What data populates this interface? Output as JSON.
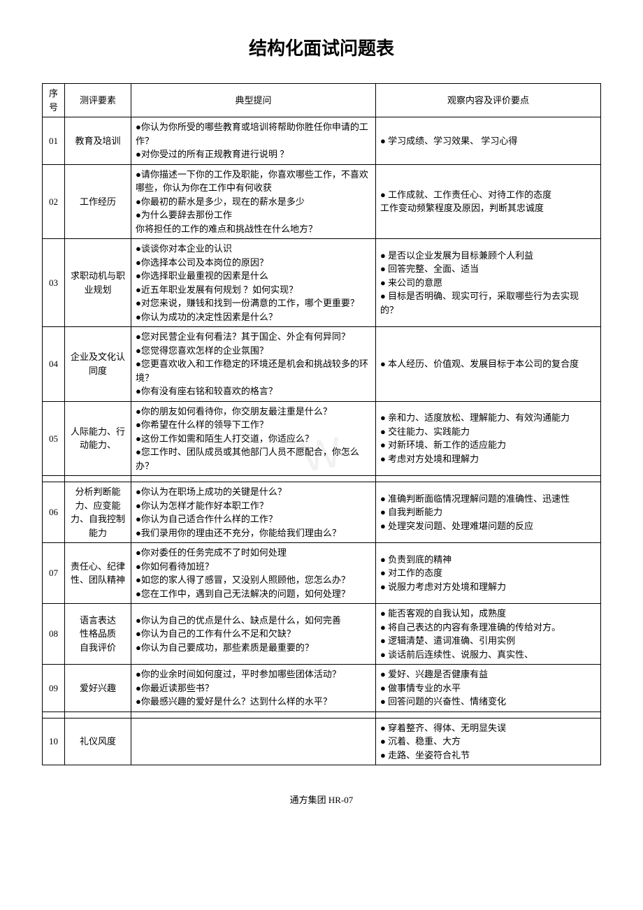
{
  "title": "结构化面试问题表",
  "headers": {
    "seq": "序号",
    "element": "测评要素",
    "question": "典型提问",
    "eval": "观察内容及评价要点"
  },
  "rows": [
    {
      "seq": "01",
      "element": "教育及培训",
      "questions": [
        {
          "bullet": true,
          "text": "你认为你所受的哪些教育或培训将帮助你胜任你申请的工作？"
        },
        {
          "bullet": true,
          "text": "对你受过的所有正规教育进行说明 ？"
        }
      ],
      "evals": [
        {
          "bullet": true,
          "text": " 学习成绩、学习效果、 学习心得"
        }
      ]
    },
    {
      "seq": "02",
      "element": "工作经历",
      "questions": [
        {
          "bullet": true,
          "text": "请你描述一下你的工作及职能，你喜欢哪些工作，不喜欢哪些，你认为你在工作中有何收获"
        },
        {
          "bullet": true,
          "text": "你最初的薪水是多少，现在的薪水是多少"
        },
        {
          "bullet": true,
          "text": "为什么要辞去那份工作"
        },
        {
          "bullet": false,
          "text": "你将担任的工作的难点和挑战性在什么地方？"
        }
      ],
      "evals": [
        {
          "bullet": true,
          "text": " 工作成就、工作责任心、对待工作的态度"
        },
        {
          "bullet": false,
          "text": "工作变动频繁程度及原因，判断其忠诚度"
        }
      ]
    },
    {
      "seq": "03",
      "element": "求职动机与职业规划",
      "questions": [
        {
          "bullet": true,
          "text": "谈谈你对本企业的认识"
        },
        {
          "bullet": true,
          "text": "你选择本公司及本岗位的原因？"
        },
        {
          "bullet": true,
          "text": "你选择职业最重视的因素是什么"
        },
        {
          "bullet": true,
          "text": "近五年职业发展有何规划 ？如何实现？"
        },
        {
          "bullet": true,
          "text": "对您来说，赚钱和找到一份满意的工作，哪个更重要？"
        },
        {
          "bullet": true,
          "text": "你认为成功的决定性因素是什么？"
        }
      ],
      "evals": [
        {
          "bullet": true,
          "text": " 是否以企业发展为目标兼顾个人利益"
        },
        {
          "bullet": true,
          "text": " 回答完整、全面、适当"
        },
        {
          "bullet": true,
          "text": " 来公司的意愿"
        },
        {
          "bullet": true,
          "text": " 目标是否明确、现实可行，采取哪些行为去实现的？"
        }
      ]
    },
    {
      "seq": "04",
      "element": "企业及文化认同度",
      "questions": [
        {
          "bullet": true,
          "text": "您对民营企业有何看法？其于国企、外企有何异同？"
        },
        {
          "bullet": true,
          "text": "您觉得您喜欢怎样的企业氛围？"
        },
        {
          "bullet": true,
          "text": "您更喜欢收入和工作稳定的环境还是机会和挑战较多的环境？"
        },
        {
          "bullet": true,
          "text": "你有没有座右铭和较喜欢的格言？"
        }
      ],
      "evals": [
        {
          "bullet": true,
          "text": " 本人经历、价值观、发展目标于本公司的复合度"
        }
      ]
    },
    {
      "seq": "05",
      "element": "人际能力、行动能力、",
      "questions": [
        {
          "bullet": true,
          "text": "你的朋友如何看待你，你交朋友最注重是什么？"
        },
        {
          "bullet": true,
          "text": "你希望在什么样的领导下工作？"
        },
        {
          "bullet": true,
          "text": "这份工作如需和陌生人打交道，你适应么？"
        },
        {
          "bullet": true,
          "text": "您工作时、团队成员或其他部门人员不愿配合，你怎么办？"
        }
      ],
      "evals": [
        {
          "bullet": true,
          "text": " 亲和力、适度放松、理解能力、有效沟通能力"
        },
        {
          "bullet": true,
          "text": " 交往能力、实践能力"
        },
        {
          "bullet": true,
          "text": " 对新环境、新工作的适应能力"
        },
        {
          "bullet": true,
          "text": " 考虑对方处境和理解力"
        }
      ]
    },
    {
      "seq": "06",
      "element": "分析判断能力、应变能力、自我控制能力",
      "questions": [
        {
          "bullet": true,
          "text": "你认为在职场上成功的关键是什么？"
        },
        {
          "bullet": true,
          "text": "你认为怎样才能作好本职工作？"
        },
        {
          "bullet": true,
          "text": "你认为自己适合作什么样的工作？"
        },
        {
          "bullet": true,
          "text": "我们录用你的理由还不充分，你能给我们理由么？"
        }
      ],
      "evals": [
        {
          "bullet": true,
          "text": " 准确判断面临情况理解问题的准确性、迅速性"
        },
        {
          "bullet": true,
          "text": " 自我判断能力"
        },
        {
          "bullet": true,
          "text": " 处理突发问题、处理难堪问题的反应"
        }
      ]
    },
    {
      "seq": "07",
      "element": "责任心、纪律性、团队精神",
      "questions": [
        {
          "bullet": true,
          "text": "你对委任的任务完成不了时如何处理"
        },
        {
          "bullet": true,
          "text": "你如何看待加班？"
        },
        {
          "bullet": true,
          "text": "如您的家人得了感冒，又没别人照顾他，您怎么办？"
        },
        {
          "bullet": true,
          "text": "您在工作中，遇到自己无法解决的问题，如何处理？"
        }
      ],
      "evals": [
        {
          "bullet": true,
          "text": " 负责到底的精神"
        },
        {
          "bullet": true,
          "text": " 对工作的态度"
        },
        {
          "bullet": true,
          "text": " 说服力考虑对方处境和理解力"
        }
      ]
    },
    {
      "seq": "08",
      "element": "语言表达\n性格品质\n自我评价",
      "questions": [
        {
          "bullet": true,
          "text": "你认为自己的优点是什么、缺点是什么，如何完善"
        },
        {
          "bullet": true,
          "text": "你认为自己的工作有什么不足和欠缺？"
        },
        {
          "bullet": true,
          "text": "你认为自己要成功，那些素质是最重要的？"
        }
      ],
      "evals": [
        {
          "bullet": true,
          "text": " 能否客观的自我认知，成熟度"
        },
        {
          "bullet": true,
          "text": " 将自己表达的内容有条理准确的传给对方。"
        },
        {
          "bullet": true,
          "text": " 逻辑清楚、遣词准确、引用实例"
        },
        {
          "bullet": true,
          "text": " 谈话前后连续性、说服力、真实性、"
        }
      ]
    },
    {
      "seq": "09",
      "element": "爱好兴趣",
      "questions": [
        {
          "bullet": true,
          "text": "你的业余时间如何度过，平时参加哪些团体活动？"
        },
        {
          "bullet": true,
          "text": "你最近读那些书？"
        },
        {
          "bullet": true,
          "text": "你最感兴趣的爱好是什么？达到什么样的水平？"
        }
      ],
      "evals": [
        {
          "bullet": true,
          "text": " 爱好、兴趣是否健康有益"
        },
        {
          "bullet": true,
          "text": " 做事情专业的水平"
        },
        {
          "bullet": true,
          "text": " 回答问题的兴奋性、情绪变化"
        }
      ]
    },
    {
      "seq": "10",
      "element": "礼仪风度",
      "questions": [],
      "evals": [
        {
          "bullet": true,
          "text": " 穿着整齐、得体、无明显失误"
        },
        {
          "bullet": true,
          "text": " 沉着、稳重、大方"
        },
        {
          "bullet": true,
          "text": " 走路、坐姿符合礼节"
        }
      ]
    }
  ],
  "footer": "通方集团  HR-07",
  "watermark": "W"
}
